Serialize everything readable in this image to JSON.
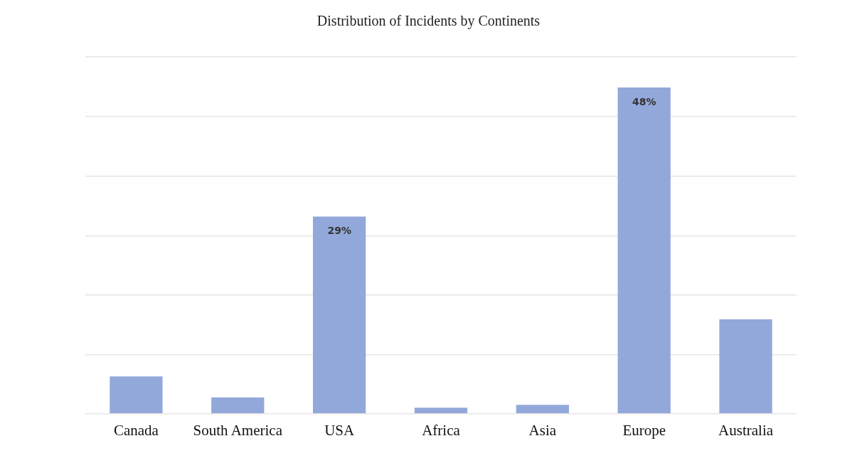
{
  "chart_data": {
    "type": "bar",
    "title": "Distribution of Incidents by Continents",
    "categories": [
      "Canada",
      "South America",
      "USA",
      "Africa",
      "Asia",
      "Europe",
      "Australia"
    ],
    "values": [
      5.5,
      2.4,
      29,
      0.9,
      1.3,
      48,
      13.9
    ],
    "value_labels": [
      null,
      null,
      "29%",
      null,
      null,
      "48%",
      null
    ],
    "color": "#93a8da",
    "ylim": [
      0,
      52.5
    ],
    "yticks": [
      {
        "value": 0,
        "label": null
      },
      {
        "value": 8.7,
        "label": null
      },
      {
        "value": 17.5,
        "label": null
      },
      {
        "value": 26.2,
        "label": null
      },
      {
        "value": 35,
        "label": null
      },
      {
        "value": 43.7,
        "label": null
      },
      {
        "value": 52.5,
        "label": null
      }
    ],
    "tick_labels": "x",
    "grid": "y",
    "legend": false
  }
}
